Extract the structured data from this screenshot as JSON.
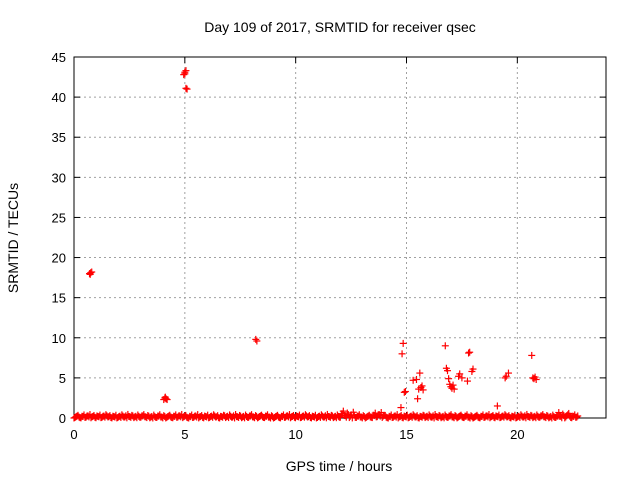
{
  "chart_data": {
    "type": "scatter",
    "title": "Day 109 of 2017, SRMTID for receiver qsec",
    "xlabel": "GPS time / hours",
    "ylabel": "SRMTID / TECUs",
    "xlim": [
      0,
      24
    ],
    "ylim": [
      0,
      45
    ],
    "xticks": [
      0,
      5,
      10,
      15,
      20
    ],
    "yticks": [
      0,
      5,
      10,
      15,
      20,
      25,
      30,
      35,
      40,
      45
    ],
    "grid": true,
    "marker": "+",
    "series": [
      {
        "color": "#ff0000",
        "points": [
          [
            0.7,
            18.0
          ],
          [
            0.75,
            18.1
          ],
          [
            0.8,
            18.2
          ],
          [
            0.73,
            17.9
          ],
          [
            4.05,
            2.3
          ],
          [
            4.1,
            2.5
          ],
          [
            4.15,
            2.4
          ],
          [
            4.2,
            2.3
          ],
          [
            4.12,
            2.6
          ],
          [
            4.95,
            42.8
          ],
          [
            5.0,
            43.1
          ],
          [
            5.05,
            43.3
          ],
          [
            5.0,
            42.9
          ],
          [
            5.1,
            41.0
          ],
          [
            5.05,
            41.1
          ],
          [
            8.2,
            9.8
          ],
          [
            8.25,
            9.6
          ],
          [
            14.75,
            1.3
          ],
          [
            14.8,
            8.0
          ],
          [
            14.85,
            9.3
          ],
          [
            14.9,
            3.2
          ],
          [
            14.95,
            3.3
          ],
          [
            15.3,
            4.7
          ],
          [
            15.45,
            4.8
          ],
          [
            15.5,
            2.4
          ],
          [
            15.55,
            3.6
          ],
          [
            15.6,
            5.6
          ],
          [
            15.65,
            3.8
          ],
          [
            15.7,
            4.0
          ],
          [
            15.75,
            3.5
          ],
          [
            16.75,
            9.0
          ],
          [
            16.8,
            6.2
          ],
          [
            16.85,
            5.9
          ],
          [
            16.9,
            4.9
          ],
          [
            16.95,
            4.2
          ],
          [
            17.0,
            3.9
          ],
          [
            17.05,
            3.7
          ],
          [
            17.1,
            4.1
          ],
          [
            17.15,
            3.6
          ],
          [
            17.35,
            5.2
          ],
          [
            17.4,
            5.5
          ],
          [
            17.5,
            5.0
          ],
          [
            17.75,
            4.6
          ],
          [
            17.8,
            8.1
          ],
          [
            17.85,
            8.2
          ],
          [
            17.95,
            5.8
          ],
          [
            18.0,
            6.1
          ],
          [
            19.1,
            1.5
          ],
          [
            19.45,
            5.0
          ],
          [
            19.5,
            5.2
          ],
          [
            19.6,
            5.6
          ],
          [
            20.65,
            7.8
          ],
          [
            20.7,
            5.0
          ],
          [
            20.75,
            4.9
          ],
          [
            20.8,
            5.1
          ],
          [
            20.85,
            4.8
          ]
        ],
        "baseline": {
          "x_range": [
            0,
            22.7
          ],
          "step": 0.09,
          "typical_max": 0.45,
          "bumps": [
            {
              "x": [
                12.0,
                12.6
              ],
              "max": 0.9
            },
            {
              "x": [
                13.4,
                14.0
              ],
              "max": 0.7
            },
            {
              "x": [
                21.8,
                22.4
              ],
              "max": 0.75
            }
          ]
        }
      }
    ]
  }
}
